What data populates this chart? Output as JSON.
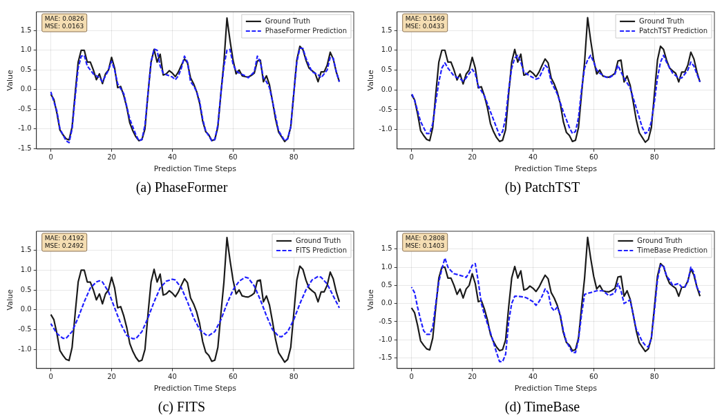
{
  "chart_data": [
    {
      "type": "line",
      "title": "(a) PhaseFormer",
      "xlabel": "Prediction Time Steps",
      "ylabel": "Value",
      "annotations": [
        "MAE: 0.0826",
        "MSE: 0.0163"
      ],
      "xlim": [
        -4.75,
        99.75
      ],
      "ylim": [
        -1.51,
        1.98
      ],
      "xticks": [
        0,
        20,
        40,
        60,
        80
      ],
      "yticks": [
        {
          "value": -1.5,
          "label": "-1.5"
        },
        {
          "value": -1,
          "label": "-1.0"
        },
        {
          "value": -0.5,
          "label": "-0.5"
        },
        {
          "value": 0,
          "label": "0.0"
        },
        {
          "value": 0.5,
          "label": "0.5"
        },
        {
          "value": 1,
          "label": "1.0"
        },
        {
          "value": 1.5,
          "label": "1.5"
        }
      ],
      "grid": true,
      "legend": "top right",
      "series": [
        {
          "name": "Ground Truth",
          "color": "#1a1a1a",
          "line_style": "solid",
          "x": [
            0,
            1,
            2,
            3,
            4,
            5,
            6,
            7,
            8,
            9,
            10,
            11,
            12,
            13,
            14,
            15,
            16,
            17,
            18,
            19,
            20,
            21,
            22,
            23,
            24,
            25,
            26,
            27,
            28,
            29,
            30,
            31,
            32,
            33,
            34,
            35,
            36,
            37,
            38,
            39,
            40,
            41,
            42,
            43,
            44,
            45,
            46,
            47,
            48,
            49,
            50,
            51,
            52,
            53,
            54,
            55,
            56,
            57,
            58,
            59,
            60,
            61,
            62,
            63,
            64,
            65,
            66,
            67,
            68,
            69,
            70,
            71,
            72,
            73,
            74,
            75,
            76,
            77,
            78,
            79,
            80,
            81,
            82,
            83,
            84,
            85,
            86,
            87,
            88,
            89,
            90,
            91,
            92,
            93,
            94,
            95
          ],
          "values": [
            -0.12,
            -0.25,
            -0.6,
            -1.03,
            -1.15,
            -1.25,
            -1.28,
            -0.95,
            -0.1,
            0.7,
            1.0,
            1.0,
            0.7,
            0.7,
            0.5,
            0.25,
            0.4,
            0.15,
            0.4,
            0.5,
            0.82,
            0.55,
            0.05,
            0.08,
            -0.15,
            -0.45,
            -0.85,
            -1.05,
            -1.2,
            -1.3,
            -1.27,
            -1.0,
            -0.1,
            0.7,
            1.02,
            0.7,
            0.9,
            0.37,
            0.4,
            0.48,
            0.42,
            0.33,
            0.45,
            0.62,
            0.78,
            0.68,
            0.3,
            0.15,
            -0.05,
            -0.35,
            -0.8,
            -1.07,
            -1.15,
            -1.3,
            -1.27,
            -0.95,
            -0.1,
            0.7,
            1.82,
            1.25,
            0.75,
            0.4,
            0.5,
            0.35,
            0.33,
            0.32,
            0.36,
            0.42,
            0.73,
            0.75,
            0.2,
            0.35,
            0.12,
            -0.3,
            -0.75,
            -1.08,
            -1.2,
            -1.32,
            -1.25,
            -0.95,
            -0.1,
            0.75,
            1.1,
            1.02,
            0.75,
            0.55,
            0.48,
            0.42,
            0.2,
            0.45,
            0.45,
            0.62,
            0.95,
            0.78,
            0.45,
            0.2
          ]
        },
        {
          "name": "PhaseFormer Prediction",
          "color": "#1f1fff",
          "line_style": "dashed",
          "x": [
            0,
            2,
            3,
            5,
            6,
            7,
            8,
            9,
            10,
            11,
            12,
            14,
            16,
            17,
            19,
            20,
            21,
            22,
            24,
            26,
            28,
            29,
            30,
            31,
            32,
            33,
            34,
            35,
            36,
            37,
            38,
            40,
            41,
            42,
            43,
            44,
            45,
            46,
            47,
            48,
            49,
            50,
            51,
            53,
            54,
            55,
            56,
            57,
            58,
            59,
            60,
            61,
            62,
            64,
            65,
            67,
            68,
            69,
            70,
            71,
            72,
            73,
            75,
            77,
            78,
            79,
            80,
            81,
            82,
            83,
            84,
            86,
            88,
            89,
            91,
            92,
            93,
            94,
            95
          ],
          "values": [
            -0.06,
            -0.55,
            -1.0,
            -1.3,
            -1.35,
            -1.0,
            -0.2,
            0.55,
            0.85,
            0.87,
            0.6,
            0.4,
            0.3,
            0.2,
            0.5,
            0.72,
            0.5,
            0.15,
            -0.1,
            -0.75,
            -1.15,
            -1.3,
            -1.27,
            -0.9,
            -0.1,
            0.7,
            1.03,
            1.0,
            0.6,
            0.42,
            0.38,
            0.32,
            0.25,
            0.35,
            0.55,
            0.85,
            0.7,
            0.2,
            0.1,
            -0.05,
            -0.3,
            -0.75,
            -1.05,
            -1.3,
            -1.27,
            -0.9,
            -0.1,
            0.6,
            1.0,
            1.02,
            0.65,
            0.48,
            0.42,
            0.35,
            0.3,
            0.45,
            0.85,
            0.7,
            0.3,
            0.2,
            0.05,
            -0.3,
            -1.05,
            -1.3,
            -1.25,
            -0.95,
            -0.1,
            0.7,
            1.05,
            1.05,
            0.8,
            0.45,
            0.38,
            0.3,
            0.5,
            0.82,
            0.8,
            0.45,
            0.2
          ]
        }
      ]
    },
    {
      "type": "line",
      "title": "(b) PatchTST",
      "xlabel": "Prediction Time Steps",
      "ylabel": "Value",
      "annotations": [
        "MAE: 0.1569",
        "MSE: 0.0433"
      ],
      "xlim": [
        -4.75,
        99.75
      ],
      "ylim": [
        -1.49,
        1.97
      ],
      "xticks": [
        0,
        20,
        40,
        60,
        80
      ],
      "yticks": [
        {
          "value": -1,
          "label": "-1.0"
        },
        {
          "value": -0.5,
          "label": "-0.5"
        },
        {
          "value": 0,
          "label": "0.0"
        },
        {
          "value": 0.5,
          "label": "0.5"
        },
        {
          "value": 1,
          "label": "1.0"
        },
        {
          "value": 1.5,
          "label": "1.5"
        }
      ],
      "grid": true,
      "legend": "top right",
      "series": [
        {
          "name": "Ground Truth",
          "color": "#1a1a1a",
          "line_style": "solid",
          "x": [
            0,
            1,
            2,
            3,
            4,
            5,
            6,
            7,
            8,
            9,
            10,
            11,
            12,
            13,
            14,
            15,
            16,
            17,
            18,
            19,
            20,
            21,
            22,
            23,
            24,
            25,
            26,
            27,
            28,
            29,
            30,
            31,
            32,
            33,
            34,
            35,
            36,
            37,
            38,
            39,
            40,
            41,
            42,
            43,
            44,
            45,
            46,
            47,
            48,
            49,
            50,
            51,
            52,
            53,
            54,
            55,
            56,
            57,
            58,
            59,
            60,
            61,
            62,
            63,
            64,
            65,
            66,
            67,
            68,
            69,
            70,
            71,
            72,
            73,
            74,
            75,
            76,
            77,
            78,
            79,
            80,
            81,
            82,
            83,
            84,
            85,
            86,
            87,
            88,
            89,
            90,
            91,
            92,
            93,
            94,
            95
          ],
          "values": [
            -0.12,
            -0.25,
            -0.6,
            -1.03,
            -1.15,
            -1.25,
            -1.28,
            -0.95,
            -0.1,
            0.7,
            1.0,
            1.0,
            0.7,
            0.7,
            0.5,
            0.25,
            0.4,
            0.15,
            0.4,
            0.5,
            0.82,
            0.55,
            0.05,
            0.08,
            -0.15,
            -0.45,
            -0.85,
            -1.05,
            -1.2,
            -1.3,
            -1.27,
            -1.0,
            -0.1,
            0.7,
            1.02,
            0.7,
            0.9,
            0.37,
            0.4,
            0.48,
            0.42,
            0.33,
            0.45,
            0.62,
            0.78,
            0.68,
            0.3,
            0.15,
            -0.05,
            -0.35,
            -0.8,
            -1.07,
            -1.15,
            -1.3,
            -1.27,
            -0.95,
            -0.1,
            0.7,
            1.82,
            1.25,
            0.75,
            0.4,
            0.5,
            0.35,
            0.33,
            0.32,
            0.36,
            0.42,
            0.73,
            0.75,
            0.2,
            0.35,
            0.12,
            -0.3,
            -0.75,
            -1.08,
            -1.2,
            -1.32,
            -1.25,
            -0.95,
            -0.1,
            0.75,
            1.1,
            1.02,
            0.75,
            0.55,
            0.48,
            0.42,
            0.2,
            0.45,
            0.45,
            0.62,
            0.95,
            0.78,
            0.45,
            0.2
          ]
        },
        {
          "name": "PatchTST Prediction",
          "color": "#1f1fff",
          "line_style": "dashed",
          "x": [
            0,
            1,
            3,
            5,
            6,
            7,
            8,
            9,
            10,
            11,
            12,
            14,
            16,
            17,
            18,
            20,
            21,
            22,
            24,
            26,
            28,
            29,
            30,
            31,
            32,
            33,
            34,
            35,
            36,
            37,
            39,
            41,
            42,
            44,
            45,
            46,
            48,
            50,
            52,
            53,
            54,
            55,
            56,
            57,
            58,
            59,
            60,
            61,
            62,
            64,
            65,
            67,
            68,
            69,
            70,
            72,
            74,
            75,
            76,
            77,
            78,
            79,
            80,
            81,
            82,
            83,
            84,
            86,
            88,
            89,
            91,
            92,
            93,
            95
          ],
          "values": [
            -0.08,
            -0.25,
            -0.8,
            -1.1,
            -1.1,
            -0.85,
            -0.3,
            0.2,
            0.55,
            0.68,
            0.55,
            0.35,
            0.28,
            0.22,
            0.3,
            0.52,
            0.4,
            0.1,
            -0.15,
            -0.55,
            -0.95,
            -1.15,
            -1.05,
            -0.7,
            0.0,
            0.55,
            0.8,
            0.87,
            0.7,
            0.45,
            0.35,
            0.27,
            0.3,
            0.62,
            0.55,
            0.2,
            -0.1,
            -0.55,
            -0.95,
            -1.1,
            -1.05,
            -0.7,
            0.0,
            0.55,
            0.75,
            0.87,
            0.7,
            0.5,
            0.42,
            0.32,
            0.3,
            0.4,
            0.62,
            0.45,
            0.3,
            0.05,
            -0.45,
            -0.7,
            -0.95,
            -1.1,
            -1.05,
            -0.8,
            -0.3,
            0.3,
            0.7,
            0.87,
            0.7,
            0.42,
            0.3,
            0.3,
            0.5,
            0.7,
            0.6,
            0.2
          ]
        }
      ]
    },
    {
      "type": "line",
      "title": "(c) FITS",
      "xlabel": "Prediction Time Steps",
      "ylabel": "Value",
      "annotations": [
        "MAE: 0.4192",
        "MSE: 0.2492"
      ],
      "xlim": [
        -4.75,
        99.75
      ],
      "ylim": [
        -1.48,
        1.98
      ],
      "xticks": [
        0,
        20,
        40,
        60,
        80
      ],
      "yticks": [
        {
          "value": -1,
          "label": "-1.0"
        },
        {
          "value": -0.5,
          "label": "-0.5"
        },
        {
          "value": 0,
          "label": "0.0"
        },
        {
          "value": 0.5,
          "label": "0.5"
        },
        {
          "value": 1,
          "label": "1.0"
        },
        {
          "value": 1.5,
          "label": "1.5"
        }
      ],
      "grid": true,
      "legend": "top right",
      "series": [
        {
          "name": "Ground Truth",
          "color": "#1a1a1a",
          "line_style": "solid",
          "x": [
            0,
            1,
            2,
            3,
            4,
            5,
            6,
            7,
            8,
            9,
            10,
            11,
            12,
            13,
            14,
            15,
            16,
            17,
            18,
            19,
            20,
            21,
            22,
            23,
            24,
            25,
            26,
            27,
            28,
            29,
            30,
            31,
            32,
            33,
            34,
            35,
            36,
            37,
            38,
            39,
            40,
            41,
            42,
            43,
            44,
            45,
            46,
            47,
            48,
            49,
            50,
            51,
            52,
            53,
            54,
            55,
            56,
            57,
            58,
            59,
            60,
            61,
            62,
            63,
            64,
            65,
            66,
            67,
            68,
            69,
            70,
            71,
            72,
            73,
            74,
            75,
            76,
            77,
            78,
            79,
            80,
            81,
            82,
            83,
            84,
            85,
            86,
            87,
            88,
            89,
            90,
            91,
            92,
            93,
            94,
            95
          ],
          "values": [
            -0.12,
            -0.25,
            -0.6,
            -1.03,
            -1.15,
            -1.25,
            -1.28,
            -0.95,
            -0.1,
            0.7,
            1.0,
            1.0,
            0.7,
            0.7,
            0.5,
            0.25,
            0.4,
            0.15,
            0.4,
            0.5,
            0.82,
            0.55,
            0.05,
            0.08,
            -0.15,
            -0.45,
            -0.85,
            -1.05,
            -1.2,
            -1.3,
            -1.27,
            -1.0,
            -0.1,
            0.7,
            1.02,
            0.7,
            0.9,
            0.37,
            0.4,
            0.48,
            0.42,
            0.33,
            0.45,
            0.62,
            0.78,
            0.68,
            0.3,
            0.15,
            -0.05,
            -0.35,
            -0.8,
            -1.07,
            -1.15,
            -1.3,
            -1.27,
            -0.95,
            -0.1,
            0.7,
            1.82,
            1.25,
            0.75,
            0.4,
            0.5,
            0.35,
            0.33,
            0.32,
            0.36,
            0.42,
            0.73,
            0.75,
            0.2,
            0.35,
            0.12,
            -0.3,
            -0.75,
            -1.08,
            -1.2,
            -1.32,
            -1.25,
            -0.95,
            -0.1,
            0.75,
            1.1,
            1.02,
            0.75,
            0.55,
            0.48,
            0.42,
            0.2,
            0.45,
            0.45,
            0.62,
            0.95,
            0.78,
            0.45,
            0.2
          ]
        },
        {
          "name": "FITS Prediction",
          "color": "#1f1fff",
          "line_style": "dashed",
          "x": [
            0,
            2,
            4,
            5,
            7,
            9,
            11,
            13,
            15,
            16,
            17,
            19,
            21,
            23,
            25,
            27,
            28,
            30,
            32,
            34,
            36,
            38,
            40,
            41,
            43,
            45,
            47,
            49,
            51,
            52,
            54,
            56,
            58,
            60,
            62,
            64,
            65,
            67,
            69,
            71,
            73,
            75,
            76,
            78,
            80,
            82,
            84,
            86,
            88,
            89,
            91,
            93,
            95
          ],
          "values": [
            -0.35,
            -0.6,
            -0.72,
            -0.72,
            -0.55,
            -0.2,
            0.2,
            0.55,
            0.7,
            0.73,
            0.7,
            0.45,
            0.05,
            -0.35,
            -0.65,
            -0.73,
            -0.73,
            -0.55,
            -0.2,
            0.2,
            0.55,
            0.72,
            0.77,
            0.75,
            0.55,
            0.2,
            -0.2,
            -0.5,
            -0.63,
            -0.65,
            -0.55,
            -0.25,
            0.15,
            0.5,
            0.72,
            0.82,
            0.8,
            0.6,
            0.25,
            -0.15,
            -0.5,
            -0.67,
            -0.68,
            -0.55,
            -0.25,
            0.15,
            0.5,
            0.75,
            0.84,
            0.82,
            0.65,
            0.35,
            0.05
          ]
        }
      ]
    },
    {
      "type": "line",
      "title": "(d) TimeBase",
      "xlabel": "Prediction Time Steps",
      "ylabel": "Value",
      "annotations": [
        "MAE: 0.2808",
        "MSE: 0.1403"
      ],
      "xlim": [
        -4.75,
        99.75
      ],
      "ylim": [
        -1.79,
        1.99
      ],
      "xticks": [
        0,
        20,
        40,
        60,
        80
      ],
      "yticks": [
        {
          "value": -1.5,
          "label": "-1.5"
        },
        {
          "value": -1,
          "label": "-1.0"
        },
        {
          "value": -0.5,
          "label": "-0.5"
        },
        {
          "value": 0,
          "label": "0.0"
        },
        {
          "value": 0.5,
          "label": "0.5"
        },
        {
          "value": 1,
          "label": "1.0"
        },
        {
          "value": 1.5,
          "label": "1.5"
        }
      ],
      "grid": true,
      "legend": "top right",
      "series": [
        {
          "name": "Ground Truth",
          "color": "#1a1a1a",
          "line_style": "solid",
          "x": [
            0,
            1,
            2,
            3,
            4,
            5,
            6,
            7,
            8,
            9,
            10,
            11,
            12,
            13,
            14,
            15,
            16,
            17,
            18,
            19,
            20,
            21,
            22,
            23,
            24,
            25,
            26,
            27,
            28,
            29,
            30,
            31,
            32,
            33,
            34,
            35,
            36,
            37,
            38,
            39,
            40,
            41,
            42,
            43,
            44,
            45,
            46,
            47,
            48,
            49,
            50,
            51,
            52,
            53,
            54,
            55,
            56,
            57,
            58,
            59,
            60,
            61,
            62,
            63,
            64,
            65,
            66,
            67,
            68,
            69,
            70,
            71,
            72,
            73,
            74,
            75,
            76,
            77,
            78,
            79,
            80,
            81,
            82,
            83,
            84,
            85,
            86,
            87,
            88,
            89,
            90,
            91,
            92,
            93,
            94,
            95
          ],
          "values": [
            -0.12,
            -0.25,
            -0.6,
            -1.03,
            -1.15,
            -1.25,
            -1.28,
            -0.95,
            -0.1,
            0.7,
            1.0,
            1.0,
            0.7,
            0.7,
            0.5,
            0.25,
            0.4,
            0.15,
            0.4,
            0.5,
            0.82,
            0.55,
            0.05,
            0.08,
            -0.15,
            -0.45,
            -0.85,
            -1.05,
            -1.2,
            -1.3,
            -1.27,
            -1.0,
            -0.1,
            0.7,
            1.02,
            0.7,
            0.9,
            0.37,
            0.4,
            0.48,
            0.42,
            0.33,
            0.45,
            0.62,
            0.78,
            0.68,
            0.3,
            0.15,
            -0.05,
            -0.35,
            -0.8,
            -1.07,
            -1.15,
            -1.3,
            -1.27,
            -0.95,
            -0.1,
            0.7,
            1.82,
            1.25,
            0.75,
            0.4,
            0.5,
            0.35,
            0.33,
            0.32,
            0.36,
            0.42,
            0.73,
            0.75,
            0.2,
            0.35,
            0.12,
            -0.3,
            -0.75,
            -1.08,
            -1.2,
            -1.32,
            -1.25,
            -0.95,
            -0.1,
            0.75,
            1.1,
            1.02,
            0.75,
            0.55,
            0.48,
            0.42,
            0.2,
            0.45,
            0.45,
            0.62,
            0.95,
            0.78,
            0.45,
            0.2
          ]
        },
        {
          "name": "TimeBase Prediction",
          "color": "#1f1fff",
          "line_style": "dashed",
          "x": [
            0,
            1,
            2,
            3,
            4,
            5,
            6,
            7,
            8,
            9,
            10,
            11,
            12,
            13,
            14,
            15,
            17,
            18,
            19,
            20,
            21,
            22,
            23,
            24,
            26,
            28,
            29,
            30,
            31,
            32,
            33,
            34,
            35,
            37,
            38,
            40,
            41,
            42,
            43,
            44,
            45,
            46,
            47,
            48,
            49,
            50,
            51,
            52,
            53,
            54,
            55,
            56,
            57,
            58,
            59,
            61,
            63,
            65,
            66,
            67,
            68,
            69,
            70,
            72,
            73,
            74,
            76,
            77,
            78,
            79,
            80,
            81,
            82,
            83,
            84,
            85,
            86,
            88,
            89,
            90,
            91,
            92,
            93,
            94,
            95
          ],
          "values": [
            0.45,
            0.3,
            -0.1,
            -0.45,
            -0.75,
            -0.85,
            -0.85,
            -0.65,
            0.0,
            0.6,
            0.95,
            1.25,
            1.0,
            0.9,
            0.82,
            0.8,
            0.75,
            0.72,
            0.85,
            1.05,
            1.1,
            0.6,
            0.0,
            -0.3,
            -0.8,
            -1.35,
            -1.6,
            -1.6,
            -1.4,
            -0.5,
            0.0,
            0.2,
            0.2,
            0.18,
            0.15,
            0.05,
            -0.05,
            0.05,
            0.2,
            0.4,
            0.3,
            -0.1,
            -0.2,
            -0.1,
            -0.3,
            -0.75,
            -1.05,
            -1.2,
            -1.35,
            -1.35,
            -1.0,
            -0.3,
            0.25,
            0.28,
            0.3,
            0.35,
            0.35,
            0.22,
            0.25,
            0.3,
            0.55,
            0.35,
            0.0,
            0.1,
            -0.3,
            -0.7,
            -1.05,
            -1.15,
            -1.2,
            -0.95,
            -0.2,
            0.65,
            1.05,
            1.05,
            0.75,
            0.65,
            0.5,
            0.55,
            0.45,
            0.45,
            0.6,
            1.0,
            0.85,
            0.45,
            0.3
          ]
        }
      ]
    }
  ]
}
